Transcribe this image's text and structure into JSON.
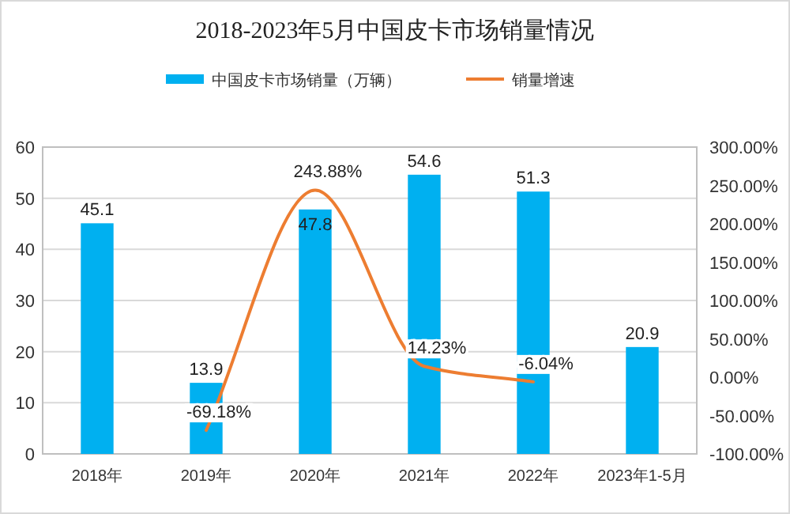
{
  "chart_data": {
    "type": "bar",
    "title": "2018-2023年5月中国皮卡市场销量情况",
    "categories": [
      "2018年",
      "2019年",
      "2020年",
      "2021年",
      "2022年",
      "2023年1-5月"
    ],
    "series": [
      {
        "name": "中国皮卡市场销量（万辆）",
        "color": "#00b0f0",
        "values": [
          45.1,
          13.9,
          47.8,
          54.6,
          51.3,
          20.9
        ],
        "value_labels": [
          "45.1",
          "13.9",
          "47.8",
          "54.6",
          "51.3",
          "20.9"
        ]
      },
      {
        "name": "销量增速",
        "type": "line",
        "axis": "y2",
        "color": "#ed7d31",
        "values": [
          null,
          -69.18,
          243.88,
          14.23,
          -6.04,
          null
        ],
        "value_labels": [
          null,
          "-69.18%",
          "243.88%",
          "14.23%",
          "-6.04%",
          null
        ]
      }
    ],
    "ylim": [
      0,
      60
    ],
    "yticks": [
      0,
      10,
      20,
      30,
      40,
      50,
      60
    ],
    "y2lim": [
      -100,
      300
    ],
    "y2ticks": [
      {
        "value": -100,
        "label": "-100.00%"
      },
      {
        "value": -50,
        "label": "-50.00%"
      },
      {
        "value": 0,
        "label": "0.00%"
      },
      {
        "value": 50,
        "label": "50.00%"
      },
      {
        "value": 100,
        "label": "100.00%"
      },
      {
        "value": 150,
        "label": "150.00%"
      },
      {
        "value": 200,
        "label": "200.00%"
      },
      {
        "value": 250,
        "label": "250.00%"
      },
      {
        "value": 300,
        "label": "300.00%"
      }
    ],
    "grid": "y",
    "legend": "top",
    "marker": "none",
    "line_style": "solid"
  }
}
